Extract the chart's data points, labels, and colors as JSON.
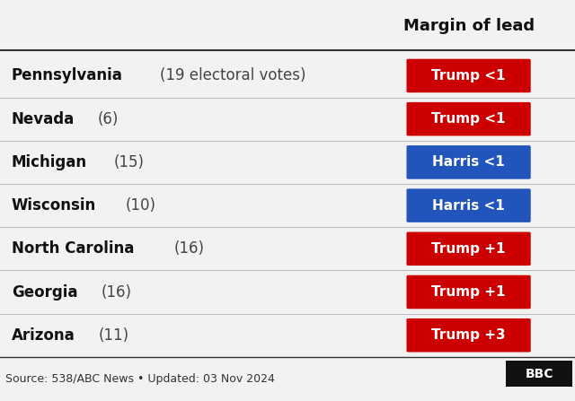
{
  "title": "Margin of lead",
  "rows": [
    {
      "state": "Pennsylvania",
      "detail": "(19 electoral votes)",
      "label": "Trump <1",
      "color": "#cc0000",
      "text_color": "#ffffff"
    },
    {
      "state": "Nevada",
      "detail": "(6)",
      "label": "Trump <1",
      "color": "#cc0000",
      "text_color": "#ffffff"
    },
    {
      "state": "Michigan",
      "detail": "(15)",
      "label": "Harris <1",
      "color": "#2255bb",
      "text_color": "#ffffff"
    },
    {
      "state": "Wisconsin",
      "detail": "(10)",
      "label": "Harris <1",
      "color": "#2255bb",
      "text_color": "#ffffff"
    },
    {
      "state": "North Carolina",
      "detail": "(16)",
      "label": "Trump +1",
      "color": "#cc0000",
      "text_color": "#ffffff"
    },
    {
      "state": "Georgia",
      "detail": "(16)",
      "label": "Trump +1",
      "color": "#cc0000",
      "text_color": "#ffffff"
    },
    {
      "state": "Arizona",
      "detail": "(11)",
      "label": "Trump +3",
      "color": "#cc0000",
      "text_color": "#ffffff"
    }
  ],
  "source_text": "Source: 538/ABC News • Updated: 03 Nov 2024",
  "bbc_logo": "BBC",
  "bg_color": "#f2f2f2",
  "divider_color": "#333333",
  "row_divider_color": "#bbbbbb",
  "title_fontsize": 13,
  "state_fontsize": 12,
  "detail_fontsize": 12,
  "label_fontsize": 11,
  "footer_fontsize": 9
}
